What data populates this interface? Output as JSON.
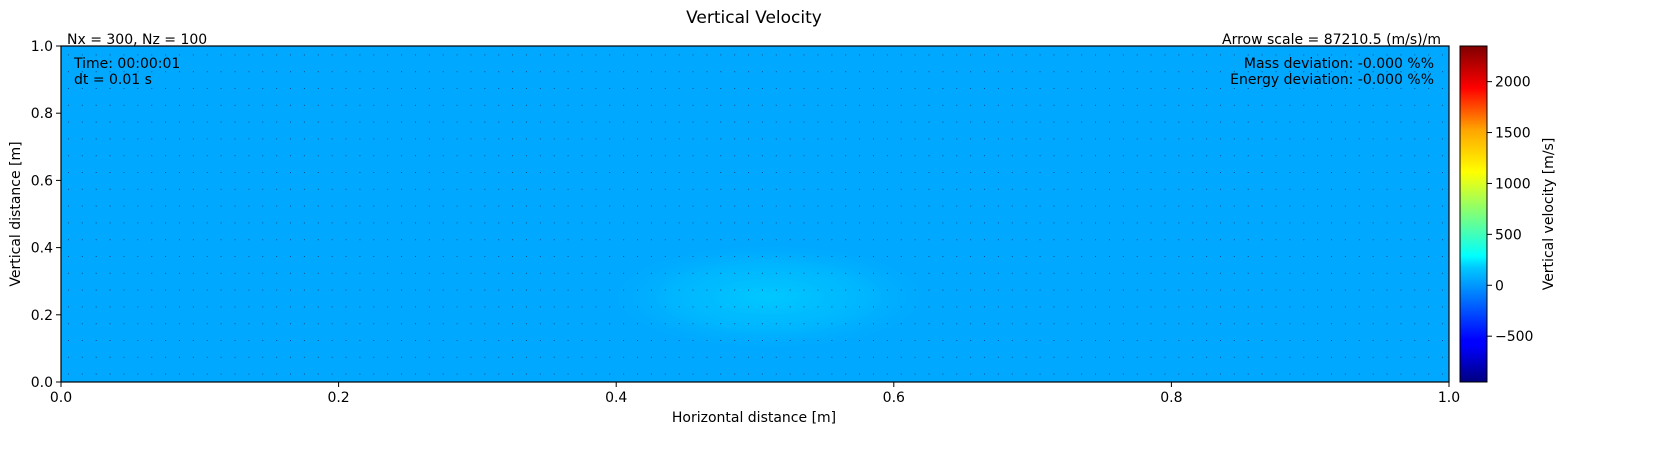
{
  "chart_data": {
    "type": "heatmap",
    "title": "Vertical Velocity",
    "xlabel": "Horizontal distance [m]",
    "ylabel": "Vertical distance [m]",
    "xlim": [
      0.0,
      1.0
    ],
    "ylim": [
      0.0,
      1.0
    ],
    "x_ticks": [
      "0.0",
      "0.2",
      "0.4",
      "0.6",
      "0.8",
      "1.0"
    ],
    "y_ticks": [
      "0.0",
      "0.2",
      "0.4",
      "0.6",
      "0.8",
      "1.0"
    ],
    "colorbar": {
      "label": "Vertical velocity [m/s]",
      "colormap": "jet",
      "range": [
        -950,
        2350
      ],
      "ticks": [
        "−500",
        "0",
        "500",
        "1000",
        "1500",
        "2000"
      ],
      "tick_values": [
        -500,
        0,
        500,
        1000,
        1500,
        2000
      ]
    },
    "field": {
      "background_value": 0,
      "background_color": "#00a8ff",
      "feature": {
        "description_value": 130,
        "center_x": 0.5,
        "center_y": 0.25,
        "color": "#00c4ff"
      }
    },
    "annotations": {
      "grid_info": "Nx = 300, Nz = 100",
      "arrow_scale": "Arrow scale = 87210.5 (m/s)/m",
      "time": "Time: 00:00:01",
      "dt": "dt = 0.01 s",
      "mass_deviation": "Mass deviation: -0.000 %%",
      "energy_deviation": "Energy deviation: -0.000 %%"
    }
  }
}
